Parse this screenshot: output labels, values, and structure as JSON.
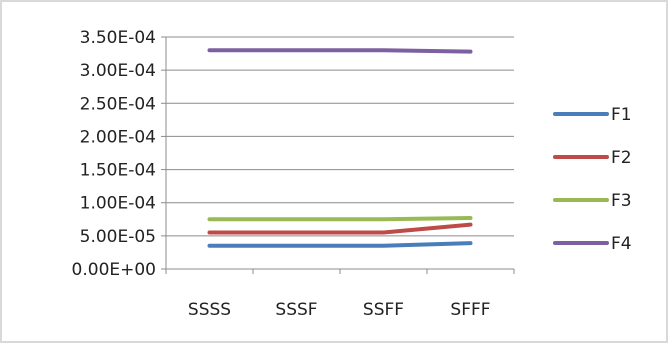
{
  "chart_data": {
    "type": "line",
    "categories": [
      "SSSS",
      "SSSF",
      "SSFF",
      "SFFF"
    ],
    "y_ticks": [
      "0.00E+00",
      "5.00E-05",
      "1.00E-04",
      "1.50E-04",
      "2.00E-04",
      "2.50E-04",
      "3.00E-04",
      "3.50E-04"
    ],
    "ylim": [
      0,
      0.00035
    ],
    "grid": true,
    "legend_position": "right",
    "series": [
      {
        "name": "F1",
        "color": "#4a7ebb",
        "values": [
          3.5e-05,
          3.5e-05,
          3.5e-05,
          3.9e-05
        ]
      },
      {
        "name": "F2",
        "color": "#be4b48",
        "values": [
          5.5e-05,
          5.5e-05,
          5.5e-05,
          6.7e-05
        ]
      },
      {
        "name": "F3",
        "color": "#98b954",
        "values": [
          7.5e-05,
          7.5e-05,
          7.5e-05,
          7.7e-05
        ]
      },
      {
        "name": "F4",
        "color": "#7d60a0",
        "values": [
          0.00033,
          0.00033,
          0.00033,
          0.000328
        ]
      }
    ]
  }
}
